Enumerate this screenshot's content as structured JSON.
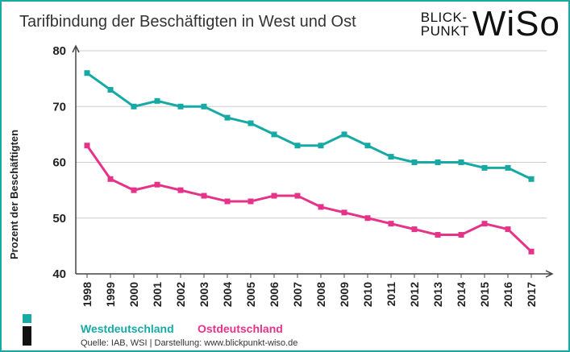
{
  "title": "Tarifbindung der Beschäftigten in West und Ost",
  "logo": {
    "line1": "BLICK-",
    "line2": "PUNKT",
    "brand": "WiSo"
  },
  "source": "Quelle: IAB, WSI  |  Darstellung: www.blickpunkt-wiso.de",
  "colors": {
    "frame": "#17a9a3",
    "west": "#17a9a3",
    "ost": "#e5338a",
    "dark": "#111111"
  },
  "chart_data": {
    "type": "line",
    "title": "Tarifbindung der Beschäftigten in West und Ost",
    "ylabel": "Prozent der Beschäftigten",
    "xlabel": "",
    "ylim": [
      40,
      80
    ],
    "yticks": [
      40,
      50,
      60,
      70,
      80
    ],
    "grid": true,
    "legend_position": "bottom",
    "x": [
      "1998",
      "1999",
      "2000",
      "2001",
      "2002",
      "2003",
      "2004",
      "2005",
      "2006",
      "2007",
      "2008",
      "2009",
      "2010",
      "2011",
      "2012",
      "2013",
      "2014",
      "2015",
      "2016",
      "2017"
    ],
    "series": [
      {
        "name": "Westdeutschland",
        "color": "#17a9a3",
        "values": [
          76,
          73,
          70,
          71,
          70,
          70,
          68,
          67,
          65,
          63,
          63,
          65,
          63,
          61,
          60,
          60,
          60,
          59,
          59,
          57
        ]
      },
      {
        "name": "Ostdeutschland",
        "color": "#e5338a",
        "values": [
          63,
          57,
          55,
          56,
          55,
          54,
          53,
          53,
          54,
          54,
          52,
          51,
          50,
          49,
          48,
          47,
          47,
          49,
          48,
          44
        ]
      }
    ]
  }
}
